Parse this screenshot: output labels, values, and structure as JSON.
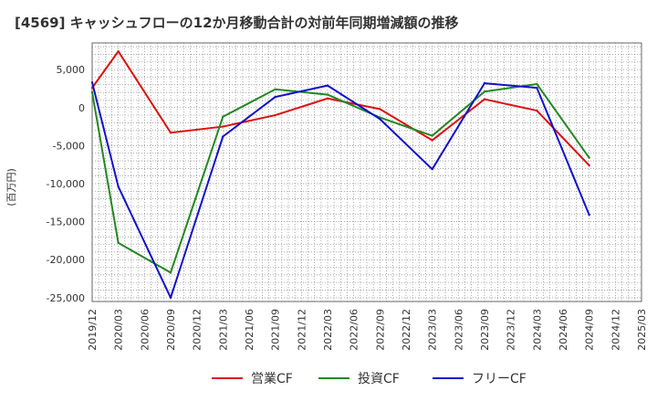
{
  "chart_data": {
    "type": "line",
    "title": "[4569]  キャッシュフローの12か月移動合計の対前年同期増減額の推移",
    "ylabel": "(百万円)",
    "xlabel": "",
    "ylim": [
      -25500,
      8500
    ],
    "yticks": [
      5000,
      0,
      -5000,
      -10000,
      -15000,
      -20000,
      -25000
    ],
    "ytick_labels": [
      "5,000",
      "0",
      "-5,000",
      "-10,000",
      "-15,000",
      "-20,000",
      "-25,000"
    ],
    "categories": [
      "2019/12",
      "2020/03",
      "2020/06",
      "2020/09",
      "2020/12",
      "2021/03",
      "2021/06",
      "2021/09",
      "2021/12",
      "2022/03",
      "2022/06",
      "2022/09",
      "2022/12",
      "2023/03",
      "2023/06",
      "2023/09",
      "2023/12",
      "2024/03",
      "2024/06",
      "2024/09",
      "2024/12",
      "2025/03"
    ],
    "grid": true,
    "legend_position": "bottom",
    "series": [
      {
        "name": "営業CF",
        "color": "#dd1111",
        "values": [
          2600,
          7400,
          null,
          -3300,
          null,
          -2500,
          null,
          -1000,
          null,
          1200,
          null,
          -200,
          null,
          -4300,
          null,
          1100,
          null,
          -400,
          null,
          -7600,
          null,
          null
        ]
      },
      {
        "name": "投資CF",
        "color": "#228822",
        "values": [
          2000,
          -17800,
          null,
          -21700,
          null,
          -1200,
          null,
          2400,
          null,
          1700,
          null,
          -1300,
          null,
          -3700,
          null,
          2100,
          null,
          3100,
          null,
          -6600,
          null,
          null
        ]
      },
      {
        "name": "フリーCF",
        "color": "#1111cc",
        "values": [
          3300,
          -10400,
          null,
          -25000,
          null,
          -3800,
          null,
          1400,
          null,
          2900,
          null,
          -1500,
          null,
          -8100,
          null,
          3200,
          null,
          2600,
          null,
          -14100,
          null,
          null
        ]
      }
    ]
  }
}
